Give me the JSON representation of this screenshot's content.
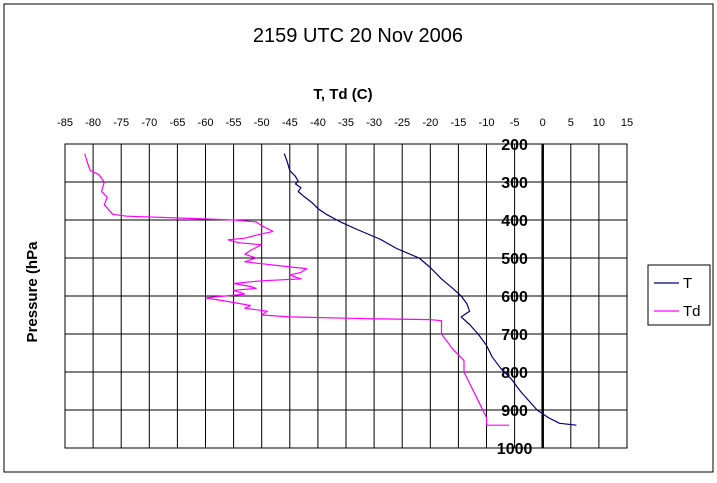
{
  "chart_data": {
    "type": "line",
    "title": "2159 UTC 20 Nov 2006",
    "xlabel": "T, Td (C)",
    "ylabel": "Pressure (hPa",
    "xlim": [
      -85,
      15
    ],
    "ylim": [
      200,
      1000
    ],
    "x_ticks": [
      "-85",
      "-80",
      "-75",
      "-70",
      "-65",
      "-60",
      "-55",
      "-50",
      "-45",
      "-40",
      "-35",
      "-30",
      "-25",
      "-20",
      "-15",
      "-10",
      "-5",
      "0",
      "5",
      "10",
      "15"
    ],
    "x_tick_values": [
      -85,
      -80,
      -75,
      -70,
      -65,
      -60,
      -55,
      -50,
      -45,
      -40,
      -35,
      -30,
      -25,
      -20,
      -15,
      -10,
      -5,
      0,
      5,
      10,
      15
    ],
    "y_ticks": [
      "200",
      "300",
      "400",
      "500",
      "600",
      "700",
      "800",
      "900",
      "1000"
    ],
    "y_tick_values": [
      200,
      300,
      400,
      500,
      600,
      700,
      800,
      900,
      1000
    ],
    "gridlines": true,
    "legend_position": "right",
    "series": [
      {
        "name": "T",
        "color": "#000080",
        "points": [
          [
            -46,
            225
          ],
          [
            -45.5,
            245
          ],
          [
            -45,
            270
          ],
          [
            -44,
            285
          ],
          [
            -43.5,
            298
          ],
          [
            -44,
            305
          ],
          [
            -43,
            315
          ],
          [
            -43.5,
            325
          ],
          [
            -42.5,
            338
          ],
          [
            -41,
            355
          ],
          [
            -40,
            370
          ],
          [
            -38.5,
            385
          ],
          [
            -36,
            405
          ],
          [
            -33,
            425
          ],
          [
            -29,
            450
          ],
          [
            -26,
            475
          ],
          [
            -22,
            500
          ],
          [
            -20,
            525
          ],
          [
            -18,
            555
          ],
          [
            -16,
            580
          ],
          [
            -14.5,
            600
          ],
          [
            -13.5,
            620
          ],
          [
            -13,
            640
          ],
          [
            -14.5,
            655
          ],
          [
            -13,
            675
          ],
          [
            -11.5,
            700
          ],
          [
            -10,
            730
          ],
          [
            -9,
            760
          ],
          [
            -7.5,
            790
          ],
          [
            -5.5,
            820
          ],
          [
            -4,
            850
          ],
          [
            -2.5,
            875
          ],
          [
            -1,
            900
          ],
          [
            1,
            920
          ],
          [
            3,
            935
          ],
          [
            6,
            940
          ]
        ]
      },
      {
        "name": "Td",
        "color": "#ff00ff",
        "points": [
          [
            -81.5,
            225
          ],
          [
            -81,
            250
          ],
          [
            -80.5,
            270
          ],
          [
            -79,
            280
          ],
          [
            -78,
            300
          ],
          [
            -78.5,
            325
          ],
          [
            -77.5,
            340
          ],
          [
            -78,
            360
          ],
          [
            -76.5,
            385
          ],
          [
            -74,
            390
          ],
          [
            -64,
            395
          ],
          [
            -55,
            400
          ],
          [
            -51,
            405
          ],
          [
            -50,
            415
          ],
          [
            -48,
            430
          ],
          [
            -51,
            440
          ],
          [
            -53,
            448
          ],
          [
            -56,
            452
          ],
          [
            -54,
            460
          ],
          [
            -50,
            465
          ],
          [
            -52,
            480
          ],
          [
            -53,
            490
          ],
          [
            -51,
            500
          ],
          [
            -53,
            510
          ],
          [
            -50,
            515
          ],
          [
            -47,
            520
          ],
          [
            -44,
            525
          ],
          [
            -42,
            528
          ],
          [
            -43,
            538
          ],
          [
            -45,
            545
          ],
          [
            -43,
            555
          ],
          [
            -50,
            560
          ],
          [
            -55,
            567
          ],
          [
            -52,
            575
          ],
          [
            -51,
            580
          ],
          [
            -55,
            585
          ],
          [
            -53,
            595
          ],
          [
            -60,
            605
          ],
          [
            -57,
            612
          ],
          [
            -55,
            617
          ],
          [
            -52,
            625
          ],
          [
            -53,
            632
          ],
          [
            -49,
            640
          ],
          [
            -50,
            650
          ],
          [
            -45,
            655
          ],
          [
            -30,
            660
          ],
          [
            -20,
            662
          ],
          [
            -18,
            665
          ],
          [
            -18,
            700
          ],
          [
            -16,
            740
          ],
          [
            -14,
            770
          ],
          [
            -14,
            800
          ],
          [
            -13,
            830
          ],
          [
            -12,
            860
          ],
          [
            -11,
            890
          ],
          [
            -10,
            920
          ],
          [
            -10,
            940
          ],
          [
            -6,
            940
          ]
        ]
      }
    ]
  }
}
